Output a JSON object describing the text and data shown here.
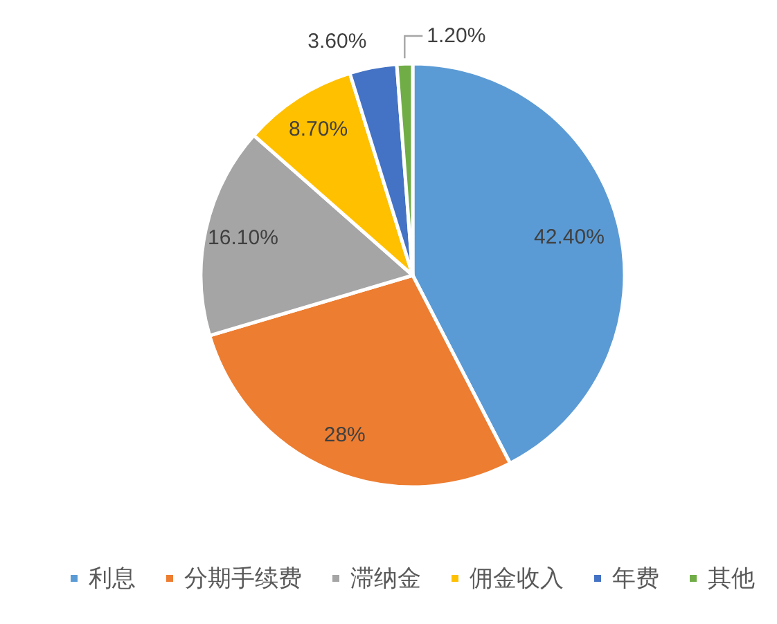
{
  "chart_data": {
    "type": "pie",
    "categories": [
      "利息",
      "分期手续费",
      "滞纳金",
      "佣金收入",
      "年费",
      "其他"
    ],
    "values": [
      42.4,
      28,
      16.1,
      8.7,
      3.6,
      1.2
    ],
    "colors": [
      "#5b9bd5",
      "#ed7d31",
      "#a5a5a5",
      "#ffc000",
      "#4472c4",
      "#70ad47"
    ],
    "value_labels": [
      "42.40%",
      "28%",
      "16.10%",
      "8.70%",
      "3.60%",
      "1.20%"
    ],
    "legend": "bottom"
  }
}
